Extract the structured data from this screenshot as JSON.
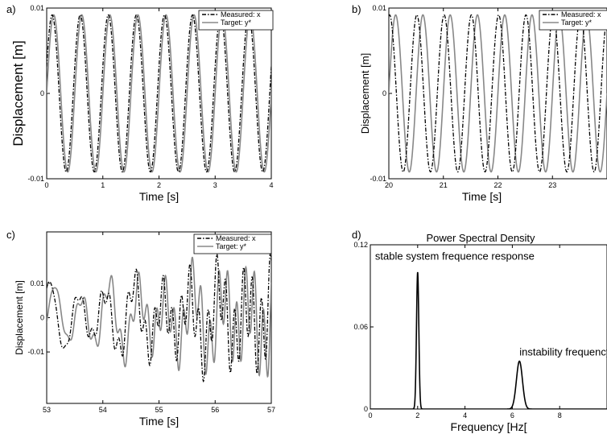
{
  "chart_data": [
    {
      "panel_label": "a)",
      "type": "line",
      "title": "",
      "xlabel": "Time [s]",
      "ylabel": "Displacement [m]",
      "xlim": [
        0,
        4
      ],
      "ylim": [
        -0.01,
        0.01
      ],
      "xticks": [
        "0",
        "1",
        "2",
        "3",
        "4"
      ],
      "yticks": [
        "0.01",
        "0",
        "-0.01"
      ],
      "grid": false,
      "legend": "top-right",
      "series": [
        {
          "name": "Measured: x",
          "style": "dash-dot",
          "color": "#000000",
          "amplitude": 0.0092,
          "frequency_hz": 2.0,
          "phase_deg": 20
        },
        {
          "name": "Target: y*",
          "style": "solid",
          "color": "#888888",
          "amplitude": 0.0092,
          "frequency_hz": 2.0,
          "phase_deg": 0
        }
      ]
    },
    {
      "panel_label": "b)",
      "type": "line",
      "title": "",
      "xlabel": "Time [s]",
      "ylabel": "Displacement [m]",
      "xlim": [
        20,
        24
      ],
      "ylim": [
        -0.01,
        0.01
      ],
      "xticks": [
        "20",
        "21",
        "22",
        "23"
      ],
      "yticks": [
        "0.01",
        "0",
        "-0.01"
      ],
      "grid": false,
      "legend": "top-right",
      "series": [
        {
          "name": "Measured: x",
          "style": "dash-dot",
          "color": "#000000",
          "amplitude": 0.0092,
          "frequency_hz": 2.0,
          "phase_deg": 80
        },
        {
          "name": "Target: y*",
          "style": "solid",
          "color": "#888888",
          "amplitude": 0.0092,
          "frequency_hz": 2.0,
          "phase_deg": 0
        }
      ]
    },
    {
      "panel_label": "c)",
      "type": "line",
      "title": "",
      "xlabel": "Time [s]",
      "ylabel": "Displacement [m]",
      "xlim": [
        53,
        57
      ],
      "ylim": [
        -0.025,
        0.025
      ],
      "xticks": [
        "53",
        "54",
        "55",
        "56",
        "57"
      ],
      "yticks": [
        "0.01",
        "0",
        "-0.01"
      ],
      "grid": false,
      "legend": "top-right",
      "series": [
        {
          "name": "Measured: x",
          "style": "dash-dot",
          "color": "#000000",
          "base_amplitude": 0.008,
          "growth_amplitude": 0.012,
          "frequency_hz": 2.0,
          "instability_hz": 6.3
        },
        {
          "name": "Target: y*",
          "style": "solid",
          "color": "#888888",
          "base_amplitude": 0.008,
          "growth_amplitude": 0.012,
          "frequency_hz": 2.0,
          "instability_hz": 6.3
        }
      ]
    },
    {
      "panel_label": "d)",
      "type": "line",
      "title": "Power Spectral Density",
      "xlabel": "Frequency [Hz[",
      "ylabel": "",
      "xlim": [
        0,
        10
      ],
      "ylim": [
        0,
        0.12
      ],
      "xticks": [
        "0",
        "2",
        "4",
        "6",
        "8"
      ],
      "yticks": [
        "0.12",
        "0.06",
        "0"
      ],
      "grid": false,
      "annotations": [
        {
          "text": "stable system frequence response",
          "x": 0.2,
          "y": 0.109
        },
        {
          "text": "instability frequency",
          "x": 6.3,
          "y": 0.039
        }
      ],
      "series": [
        {
          "name": "",
          "style": "solid",
          "color": "#000000",
          "peaks": [
            {
              "frequency_hz": 2.0,
              "height": 0.1,
              "width": 0.07
            },
            {
              "frequency_hz": 6.3,
              "height": 0.035,
              "width": 0.18
            }
          ]
        }
      ]
    }
  ]
}
